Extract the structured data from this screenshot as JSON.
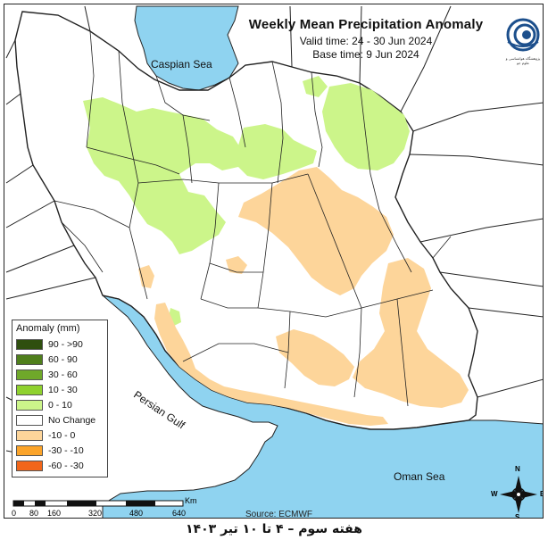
{
  "header": {
    "title": "Weekly Mean Precipitation Anomaly",
    "valid_time": "Valid time: 24 - 30 Jun 2024",
    "base_time": "Base time: 9 Jun 2024"
  },
  "logo": {
    "icon": "organization-spiral-logo",
    "text": "پژوهشگاه هواشناسی و علوم جو"
  },
  "seas": {
    "caspian": "Caspian Sea",
    "persian_gulf": "Persian Gulf",
    "oman": "Oman Sea"
  },
  "legend": {
    "title": "Anomaly (mm)",
    "items": [
      {
        "label": "90 - >90",
        "color": "#2f4f0f"
      },
      {
        "label": "60 - 90",
        "color": "#4f7f1c"
      },
      {
        "label": "30 - 60",
        "color": "#6fa82a"
      },
      {
        "label": "10 - 30",
        "color": "#8fd12e"
      },
      {
        "label": "0 - 10",
        "color": "#ccf58a"
      },
      {
        "label": "No Change",
        "color": "#ffffff"
      },
      {
        "label": "-10 - 0",
        "color": "#fdd59a"
      },
      {
        "label": "-30 - -10",
        "color": "#fba42a"
      },
      {
        "label": "-60 - -30",
        "color": "#f2661a"
      }
    ]
  },
  "scale_bar": {
    "unit": "Km",
    "ticks": [
      "0",
      "80",
      "160",
      "320",
      "480",
      "640"
    ]
  },
  "source": "Source: ECMWF",
  "compass": {
    "n": "N",
    "s": "S",
    "e": "E",
    "w": "W"
  },
  "footer": "هفته سوم – ۴ تا ۱۰ تیر ۱۴۰۳",
  "colors": {
    "water": "#8fd3f0",
    "positive_light": "#ccf58a",
    "negative_light": "#fdd59a",
    "border": "#222222"
  }
}
